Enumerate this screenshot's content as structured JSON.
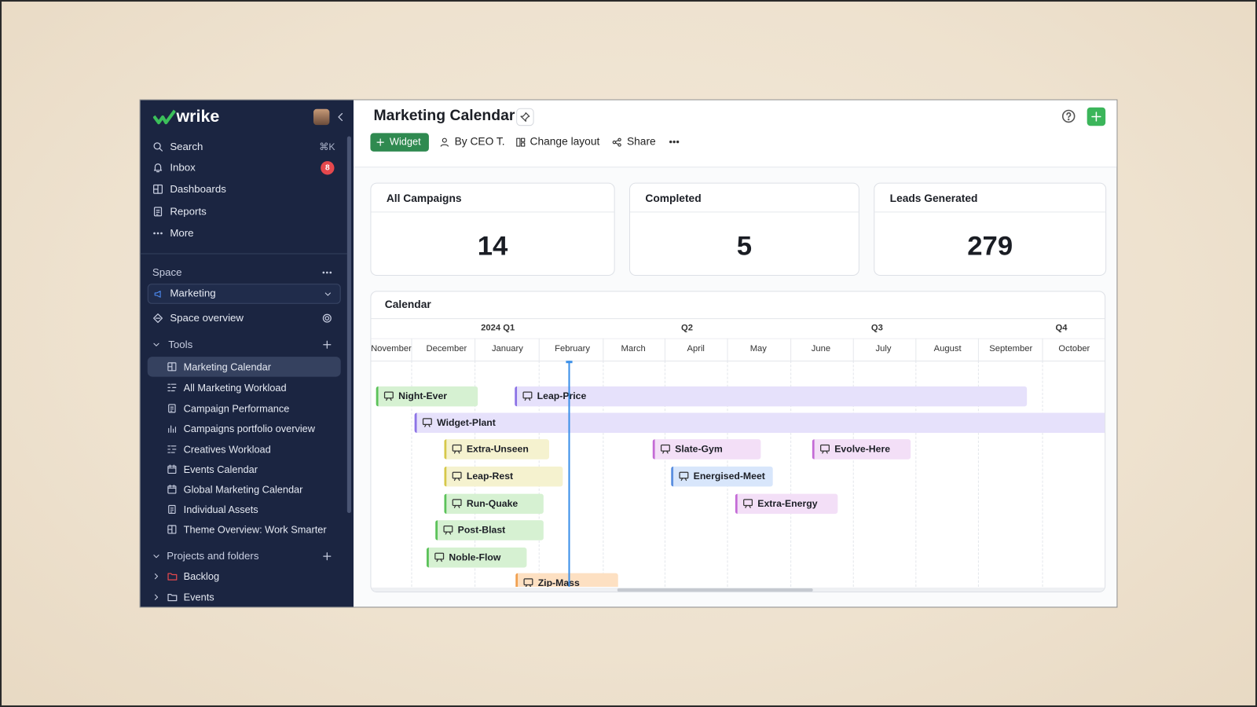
{
  "sidebar": {
    "logo": "wrike",
    "nav": [
      {
        "label": "Search",
        "shortcut": "⌘K"
      },
      {
        "label": "Inbox",
        "badge": 8
      },
      {
        "label": "Dashboards"
      },
      {
        "label": "Reports"
      },
      {
        "label": "More"
      }
    ],
    "space": {
      "heading": "Space",
      "selected": "Marketing",
      "overview": "Space overview"
    },
    "tools": {
      "heading": "Tools",
      "items": [
        "Marketing Calendar",
        "All Marketing Workload",
        "Campaign Performance",
        "Campaigns portfolio overview",
        "Creatives Workload",
        "Events Calendar",
        "Global Marketing Calendar",
        "Individual Assets",
        "Theme Overview: Work Smarter"
      ]
    },
    "projects": {
      "heading": "Projects and folders",
      "items": [
        "Backlog",
        "Events"
      ]
    }
  },
  "header": {
    "title": "Marketing Calendar",
    "actions": [
      "Widget",
      "By CEO T.",
      "Change layout",
      "Share"
    ]
  },
  "stats": [
    {
      "label": "All Campaigns",
      "value": 14
    },
    {
      "label": "Completed",
      "value": 5
    },
    {
      "label": "Leads Generated",
      "value": 279
    }
  ],
  "calendar": {
    "title": "Calendar",
    "quarters": [
      "2024 Q1",
      "Q2",
      "Q3",
      "Q4"
    ],
    "months": [
      "November",
      "December",
      "January",
      "February",
      "March",
      "April",
      "May",
      "June",
      "July",
      "August",
      "September",
      "October"
    ],
    "tasks": [
      "Night-Ever",
      "Leap-Price",
      "Widget-Plant",
      "Extra-Unseen",
      "Slate-Gym",
      "Evolve-Here",
      "Leap-Rest",
      "Energised-Meet",
      "Run-Quake",
      "Extra-Energy",
      "Post-Blast",
      "Noble-Flow",
      "Zip-Mass"
    ]
  }
}
